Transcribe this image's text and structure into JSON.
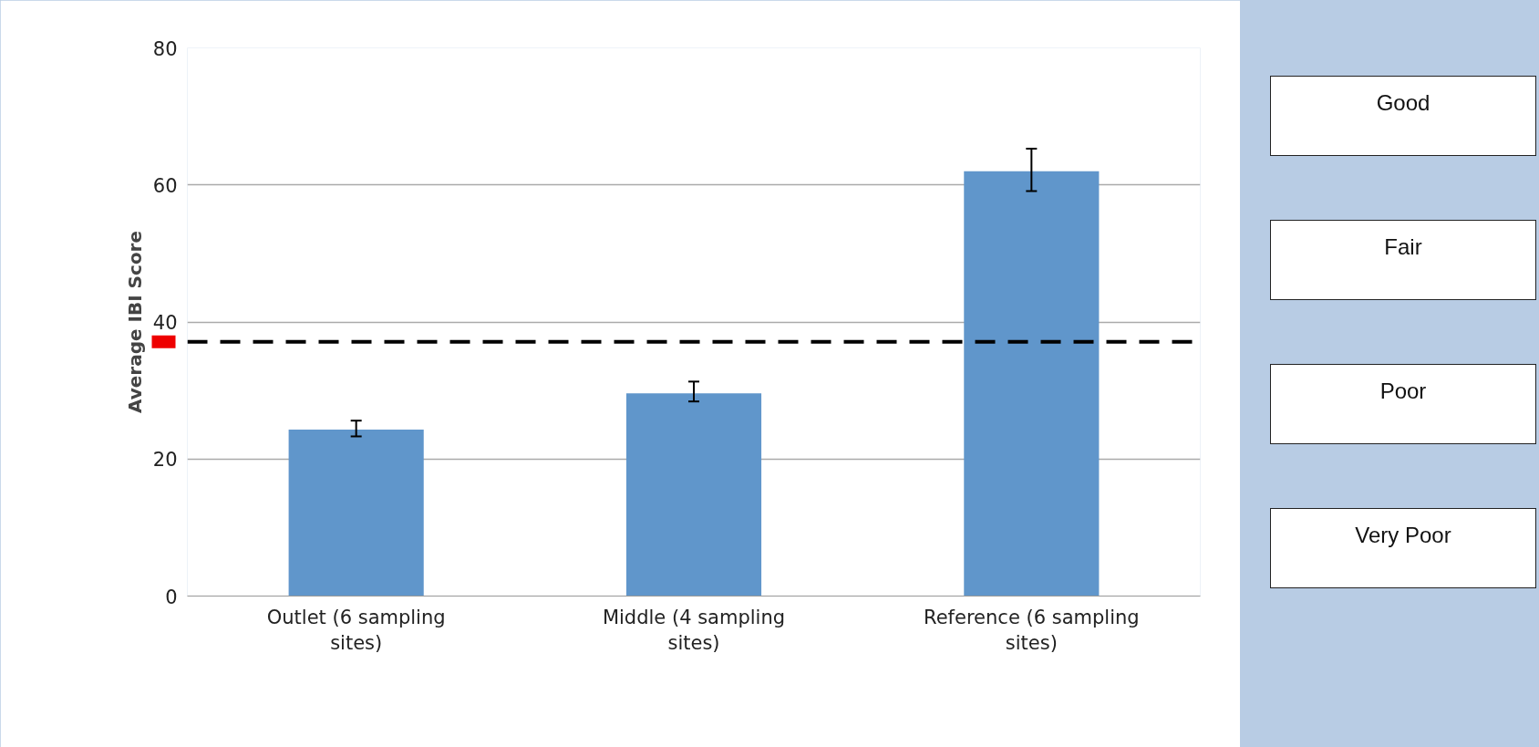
{
  "chart_data": {
    "type": "bar",
    "ylabel": "Average IBI Score",
    "categories": [
      "Outlet (6 sampling sites)",
      "Middle (4 sampling sites)",
      "Reference (6 sampling sites)"
    ],
    "values": [
      24.3,
      29.6,
      62.0
    ],
    "color": "#6096cb",
    "errors": [
      [
        23.3,
        25.6
      ],
      [
        28.4,
        31.3
      ],
      [
        59.1,
        65.3
      ]
    ],
    "ylim": [
      0,
      80
    ],
    "yticks": [
      0,
      20,
      40,
      60,
      80
    ],
    "grid": "y",
    "ref_lines": [
      {
        "axis": "y",
        "value": 37.1,
        "label": null,
        "color": "#000000",
        "line_style": "dashed"
      }
    ],
    "annotations": [
      "Good",
      "Fair",
      "Poor",
      "Very Poor"
    ]
  }
}
